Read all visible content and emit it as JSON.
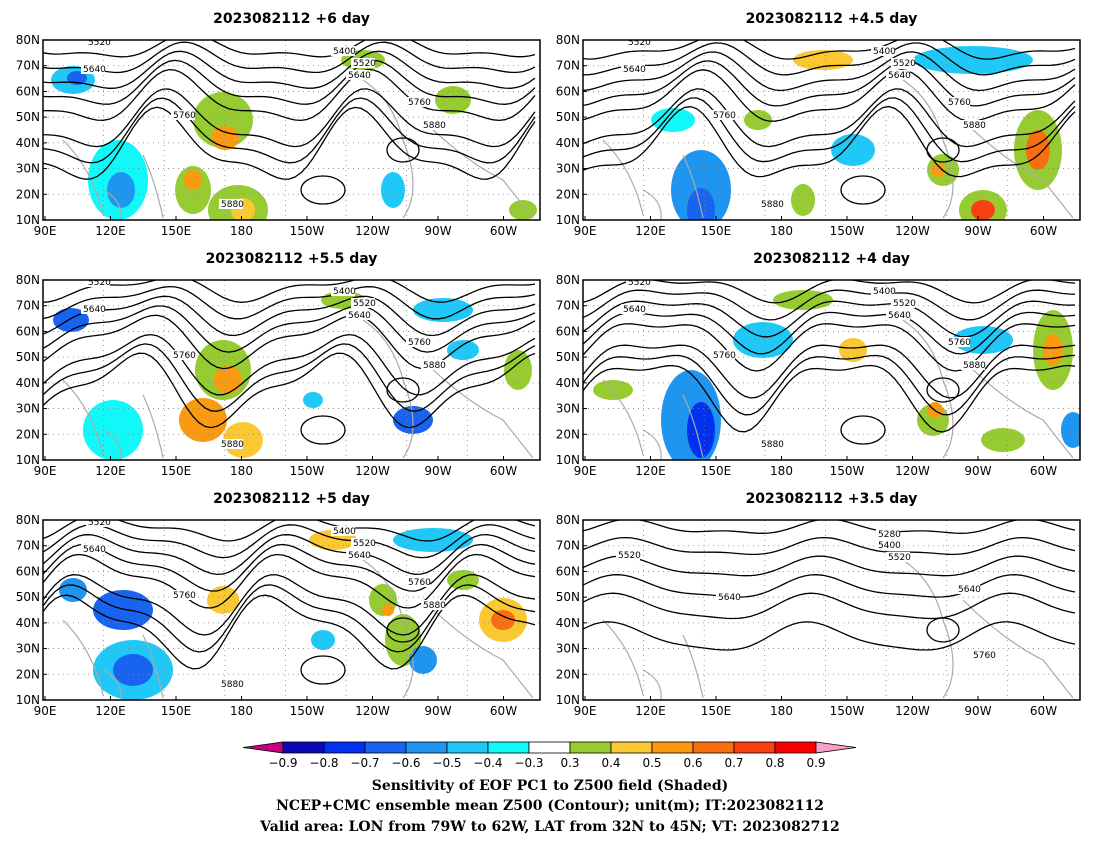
{
  "panels": [
    {
      "title": "2023082112 +6 day",
      "contour_labels": [
        "5520",
        "5640",
        "5400",
        "5520",
        "5640",
        "5760",
        "5760",
        "5880",
        "5880"
      ]
    },
    {
      "title": "2023082112 +4.5 day",
      "contour_labels": [
        "5520",
        "5640",
        "5400",
        "5520",
        "5640",
        "5760",
        "5760",
        "5880",
        "5880"
      ]
    },
    {
      "title": "2023082112 +5.5 day",
      "contour_labels": [
        "5520",
        "5640",
        "5400",
        "5520",
        "5640",
        "5760",
        "5760",
        "5880",
        "5880"
      ]
    },
    {
      "title": "2023082112 +4 day",
      "contour_labels": [
        "5520",
        "5640",
        "5400",
        "5520",
        "5640",
        "5760",
        "5760",
        "5880",
        "5880"
      ]
    },
    {
      "title": "2023082112 +5 day",
      "contour_labels": [
        "5520",
        "5640",
        "5400",
        "5520",
        "5640",
        "5760",
        "5760",
        "5880",
        "5880"
      ]
    },
    {
      "title": "2023082112 +3.5 day",
      "contour_labels": [
        "5520",
        "5280",
        "5400",
        "5520",
        "5640",
        "5640",
        "5760"
      ]
    }
  ],
  "axes": {
    "lon_ticks": [
      "90E",
      "120E",
      "150E",
      "180",
      "150W",
      "120W",
      "90W",
      "60W"
    ],
    "lat_ticks": [
      "10N",
      "20N",
      "30N",
      "40N",
      "50N",
      "60N",
      "70N",
      "80N"
    ]
  },
  "colorbar": {
    "labels": [
      "−0.9",
      "−0.8",
      "−0.7",
      "−0.6",
      "−0.5",
      "−0.4",
      "−0.3",
      "0.3",
      "0.4",
      "0.5",
      "0.6",
      "0.7",
      "0.8",
      "0.9"
    ],
    "colors": [
      "#c8007f",
      "#0a0ab4",
      "#0030f0",
      "#1864f0",
      "#1e96f0",
      "#20c8f8",
      "#10f8f8",
      "#ffffff",
      "#96cc32",
      "#fac832",
      "#fa9a10",
      "#f86e10",
      "#f84010",
      "#f80000",
      "#f8a0c8"
    ]
  },
  "caption": {
    "line1": "Sensitivity of EOF PC1 to Z500 field (Shaded)",
    "line2": "NCEP+CMC ensemble mean Z500 (Contour); unit(m); IT:2023082112",
    "line3": "Valid area: LON from 79W to 62W, LAT from 32N to 45N; VT: 2023082712"
  }
}
